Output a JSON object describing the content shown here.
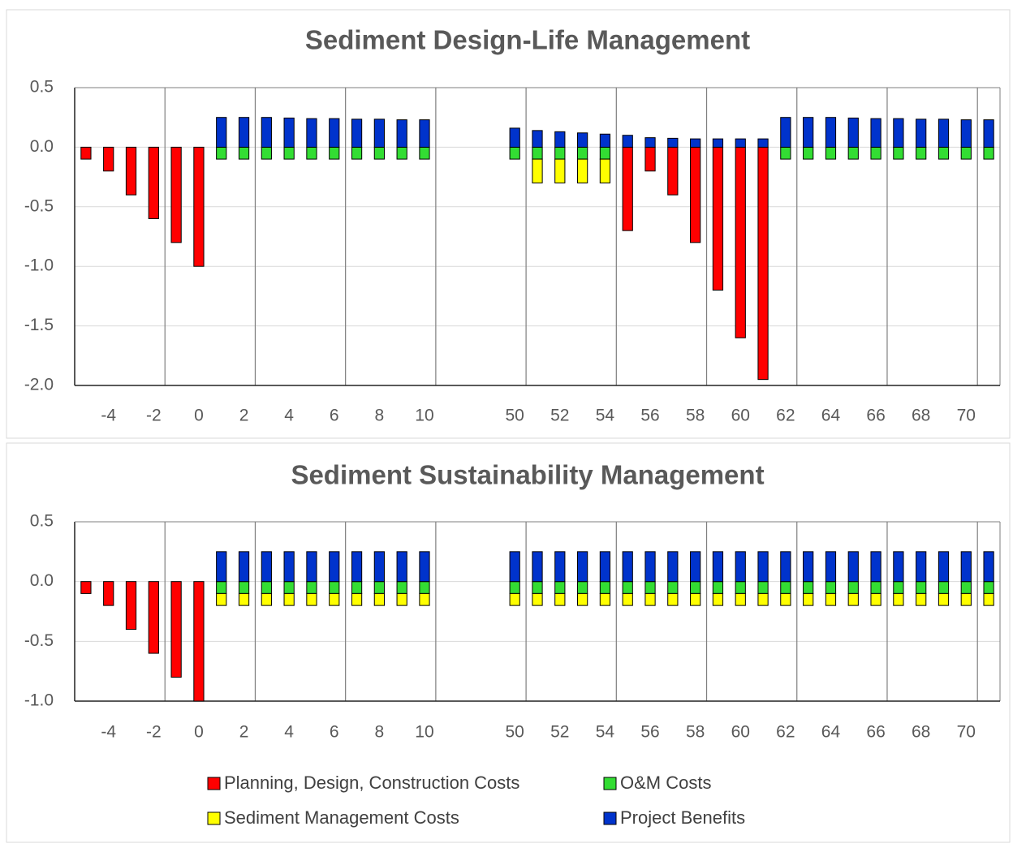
{
  "chart_data": [
    {
      "type": "bar",
      "stacked": true,
      "title": "Sediment Design-Life Management",
      "categories": [
        null,
        "-4",
        null,
        "-2",
        null,
        "0",
        null,
        "2",
        null,
        "4",
        null,
        "6",
        null,
        "8",
        null,
        "10",
        null,
        null,
        null,
        "50",
        null,
        "52",
        null,
        "54",
        null,
        "56",
        null,
        "58",
        null,
        "60",
        null,
        "62",
        null,
        "64",
        null,
        "66",
        null,
        "68",
        null,
        "70",
        null
      ],
      "ylim": [
        -2,
        0.5
      ],
      "yticks": [
        {
          "value": -2,
          "label": "-2.0"
        },
        {
          "value": -1.5,
          "label": "-1.5"
        },
        {
          "value": -1,
          "label": "-1.0"
        },
        {
          "value": -0.5,
          "label": "-0.5"
        },
        {
          "value": 0,
          "label": "0.0"
        },
        {
          "value": 0.5,
          "label": "0.5"
        }
      ],
      "grid": true,
      "series": [
        {
          "color": "#ff0000",
          "values": [
            -0.1,
            -0.2,
            -0.4,
            -0.6,
            -0.8,
            -1.0,
            null,
            null,
            null,
            null,
            null,
            null,
            null,
            null,
            null,
            null,
            null,
            null,
            null,
            null,
            null,
            null,
            null,
            null,
            -0.7,
            -0.2,
            -0.4,
            -0.8,
            -1.2,
            -1.6,
            -1.95,
            null,
            null,
            null,
            null,
            null,
            null,
            null,
            null,
            null,
            null
          ]
        },
        {
          "color": "#33dd33",
          "values": [
            null,
            null,
            null,
            null,
            null,
            null,
            -0.1,
            -0.1,
            -0.1,
            -0.1,
            -0.1,
            -0.1,
            -0.1,
            -0.1,
            -0.1,
            -0.1,
            null,
            null,
            null,
            -0.1,
            -0.1,
            -0.1,
            -0.1,
            -0.1,
            null,
            null,
            null,
            null,
            null,
            null,
            null,
            -0.1,
            -0.1,
            -0.1,
            -0.1,
            -0.1,
            -0.1,
            -0.1,
            -0.1,
            -0.1,
            -0.1
          ]
        },
        {
          "color": "#ffff00",
          "values": [
            null,
            null,
            null,
            null,
            null,
            null,
            null,
            null,
            null,
            null,
            null,
            null,
            null,
            null,
            null,
            null,
            null,
            null,
            null,
            null,
            -0.2,
            -0.2,
            -0.2,
            -0.2,
            null,
            null,
            null,
            null,
            null,
            null,
            null,
            null,
            null,
            null,
            null,
            null,
            null,
            null,
            null,
            null,
            null
          ]
        },
        {
          "color": "#0033cc",
          "values": [
            null,
            null,
            null,
            null,
            null,
            null,
            0.25,
            0.25,
            0.25,
            0.245,
            0.24,
            0.24,
            0.235,
            0.235,
            0.23,
            0.23,
            null,
            null,
            null,
            0.16,
            0.14,
            0.13,
            0.12,
            0.11,
            0.1,
            0.08,
            0.075,
            0.07,
            0.07,
            0.07,
            0.07,
            0.25,
            0.25,
            0.25,
            0.245,
            0.24,
            0.24,
            0.235,
            0.235,
            0.23,
            0.23
          ]
        }
      ]
    },
    {
      "type": "bar",
      "stacked": true,
      "title": "Sediment Sustainability Management",
      "categories": [
        null,
        "-4",
        null,
        "-2",
        null,
        "0",
        null,
        "2",
        null,
        "4",
        null,
        "6",
        null,
        "8",
        null,
        "10",
        null,
        null,
        null,
        "50",
        null,
        "52",
        null,
        "54",
        null,
        "56",
        null,
        "58",
        null,
        "60",
        null,
        "62",
        null,
        "64",
        null,
        "66",
        null,
        "68",
        null,
        "70",
        null
      ],
      "ylim": [
        -1,
        0.5
      ],
      "yticks": [
        {
          "value": -1,
          "label": "-1.0"
        },
        {
          "value": -0.5,
          "label": "-0.5"
        },
        {
          "value": 0,
          "label": "0.0"
        },
        {
          "value": 0.5,
          "label": "0.5"
        }
      ],
      "grid": true,
      "series": [
        {
          "name": "Planning, Design, Construction Costs",
          "color": "#ff0000",
          "values": [
            -0.1,
            -0.2,
            -0.4,
            -0.6,
            -0.8,
            -1.0,
            null,
            null,
            null,
            null,
            null,
            null,
            null,
            null,
            null,
            null,
            null,
            null,
            null,
            null,
            null,
            null,
            null,
            null,
            null,
            null,
            null,
            null,
            null,
            null,
            null,
            null,
            null,
            null,
            null,
            null,
            null,
            null,
            null,
            null,
            null
          ]
        },
        {
          "name": "O&M Costs",
          "color": "#33dd33",
          "values": [
            null,
            null,
            null,
            null,
            null,
            null,
            -0.1,
            -0.1,
            -0.1,
            -0.1,
            -0.1,
            -0.1,
            -0.1,
            -0.1,
            -0.1,
            -0.1,
            null,
            null,
            null,
            -0.1,
            -0.1,
            -0.1,
            -0.1,
            -0.1,
            -0.1,
            -0.1,
            -0.1,
            -0.1,
            -0.1,
            -0.1,
            -0.1,
            -0.1,
            -0.1,
            -0.1,
            -0.1,
            -0.1,
            -0.1,
            -0.1,
            -0.1,
            -0.1,
            -0.1
          ]
        },
        {
          "name": "Sediment Management Costs",
          "color": "#ffff00",
          "values": [
            null,
            null,
            null,
            null,
            null,
            null,
            -0.1,
            -0.1,
            -0.1,
            -0.1,
            -0.1,
            -0.1,
            -0.1,
            -0.1,
            -0.1,
            -0.1,
            null,
            null,
            null,
            -0.1,
            -0.1,
            -0.1,
            -0.1,
            -0.1,
            -0.1,
            -0.1,
            -0.1,
            -0.1,
            -0.1,
            -0.1,
            -0.1,
            -0.1,
            -0.1,
            -0.1,
            -0.1,
            -0.1,
            -0.1,
            -0.1,
            -0.1,
            -0.1,
            -0.1
          ]
        },
        {
          "name": "Project Benefits",
          "color": "#0033cc",
          "values": [
            null,
            null,
            null,
            null,
            null,
            null,
            0.25,
            0.25,
            0.25,
            0.25,
            0.25,
            0.25,
            0.25,
            0.25,
            0.25,
            0.25,
            null,
            null,
            null,
            0.25,
            0.25,
            0.25,
            0.25,
            0.25,
            0.25,
            0.25,
            0.25,
            0.25,
            0.25,
            0.25,
            0.25,
            0.25,
            0.25,
            0.25,
            0.25,
            0.25,
            0.25,
            0.25,
            0.25,
            0.25,
            0.25
          ]
        }
      ]
    }
  ]
}
